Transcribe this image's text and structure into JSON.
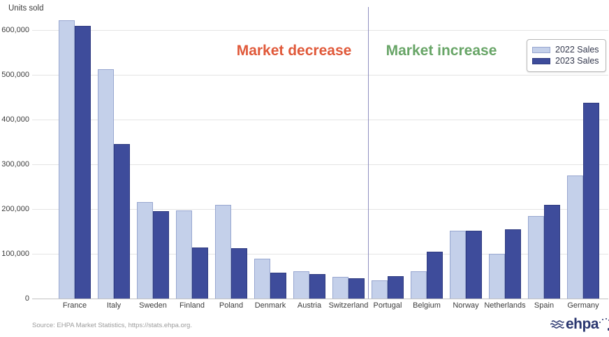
{
  "axis": {
    "units_label": "Units sold"
  },
  "chart_data": {
    "type": "bar",
    "title": "",
    "xlabel": "",
    "ylabel": "Units sold",
    "categories": [
      "France",
      "Italy",
      "Sweden",
      "Finland",
      "Poland",
      "Denmark",
      "Austria",
      "Switzerland",
      "Portugal",
      "Belgium",
      "Norway",
      "Netherlands",
      "Spain",
      "Germany"
    ],
    "series": [
      {
        "name": "2022 Sales",
        "color": "#c4d0ea",
        "border_color": "#98a7d0",
        "values": [
          622000,
          513000,
          216000,
          197000,
          209000,
          89000,
          61000,
          49000,
          41000,
          61000,
          151000,
          100000,
          184000,
          275000
        ]
      },
      {
        "name": "2023 Sales",
        "color": "#3e4c9b",
        "border_color": "#2f3b80",
        "values": [
          610000,
          345000,
          196000,
          114000,
          112000,
          58000,
          55000,
          45000,
          50000,
          104000,
          152000,
          155000,
          210000,
          438000
        ]
      }
    ],
    "ylim": [
      0,
      650000
    ],
    "yticks": [
      0,
      100000,
      200000,
      300000,
      400000,
      500000,
      600000
    ],
    "ytick_labels": [
      "0",
      "100,000",
      "200,000",
      "300,000",
      "400,000",
      "500,000",
      "600,000"
    ],
    "grid": true,
    "legend_position": "top-right",
    "divider_between": [
      "Switzerland",
      "Portugal"
    ],
    "annotations": [
      {
        "id": "decrease",
        "text": "Market decrease",
        "color": "#e0593a"
      },
      {
        "id": "increase",
        "text": "Market increase",
        "color": "#68a567"
      }
    ],
    "colors": {
      "gridline": "#e4e4e4",
      "axis_line": "#c3c3c3",
      "divider": "#8f8fc0",
      "tick_text": "#3c3c3c"
    }
  },
  "legend": {
    "items": [
      {
        "label": "2022 Sales"
      },
      {
        "label": "2023 Sales"
      }
    ]
  },
  "annotations": {
    "decrease": "Market decrease",
    "increase": "Market increase"
  },
  "footer": {
    "source": "Source: EHPA Market Statistics, https://stats.ehpa.org."
  },
  "logo": {
    "text": "ehpa"
  }
}
